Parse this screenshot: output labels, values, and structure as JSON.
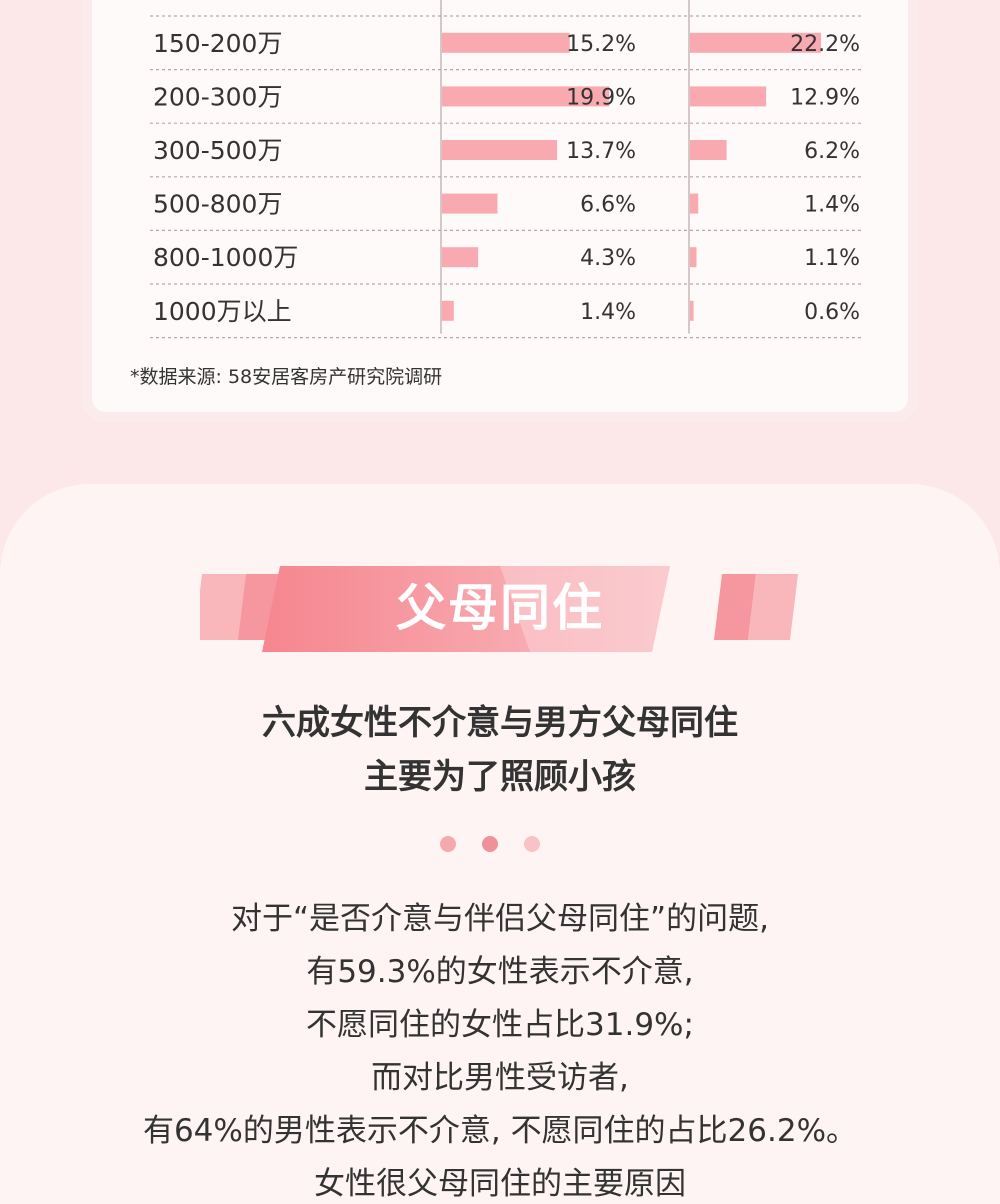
{
  "chart_data": {
    "type": "bar",
    "categories": [
      "150-200万",
      "200-300万",
      "300-500万",
      "500-800万",
      "800-1000万",
      "1000万以上"
    ],
    "series": [
      {
        "values": [
          15.2,
          19.9,
          13.7,
          6.6,
          4.3,
          1.4
        ],
        "labels": [
          "15.2%",
          "19.9%",
          "13.7%",
          "6.6%",
          "4.3%",
          "1.4%"
        ]
      },
      {
        "values": [
          22.2,
          12.9,
          6.2,
          1.4,
          1.1,
          0.6
        ],
        "labels": [
          "22.2%",
          "12.9%",
          "6.2%",
          "1.4%",
          "1.1%",
          "0.6%"
        ]
      }
    ],
    "bar_color": "#f9a9b0",
    "grid": "dashed row separators"
  },
  "source_note": "*数据来源: 58安居客房产研究院调研",
  "section": {
    "banner_title": "父母同住",
    "headline": [
      "六成女性不介意与男方父母同住",
      "主要为了照顾小孩"
    ],
    "body": [
      "对于“是否介意与伴侣父母同住”的问题,",
      "有59.3%的女性表示不介意,",
      "不愿同住的女性占比31.9%;",
      "而对比男性受访者,",
      "有64%的男性表示不介意, 不愿同住的占比26.2%。",
      "女性很父母同住的主要原因"
    ]
  },
  "colors": {
    "accent": "#f58f98",
    "bar": "#f9a9b0",
    "background": "#fde8e9",
    "dot": "#ef9aa0"
  }
}
